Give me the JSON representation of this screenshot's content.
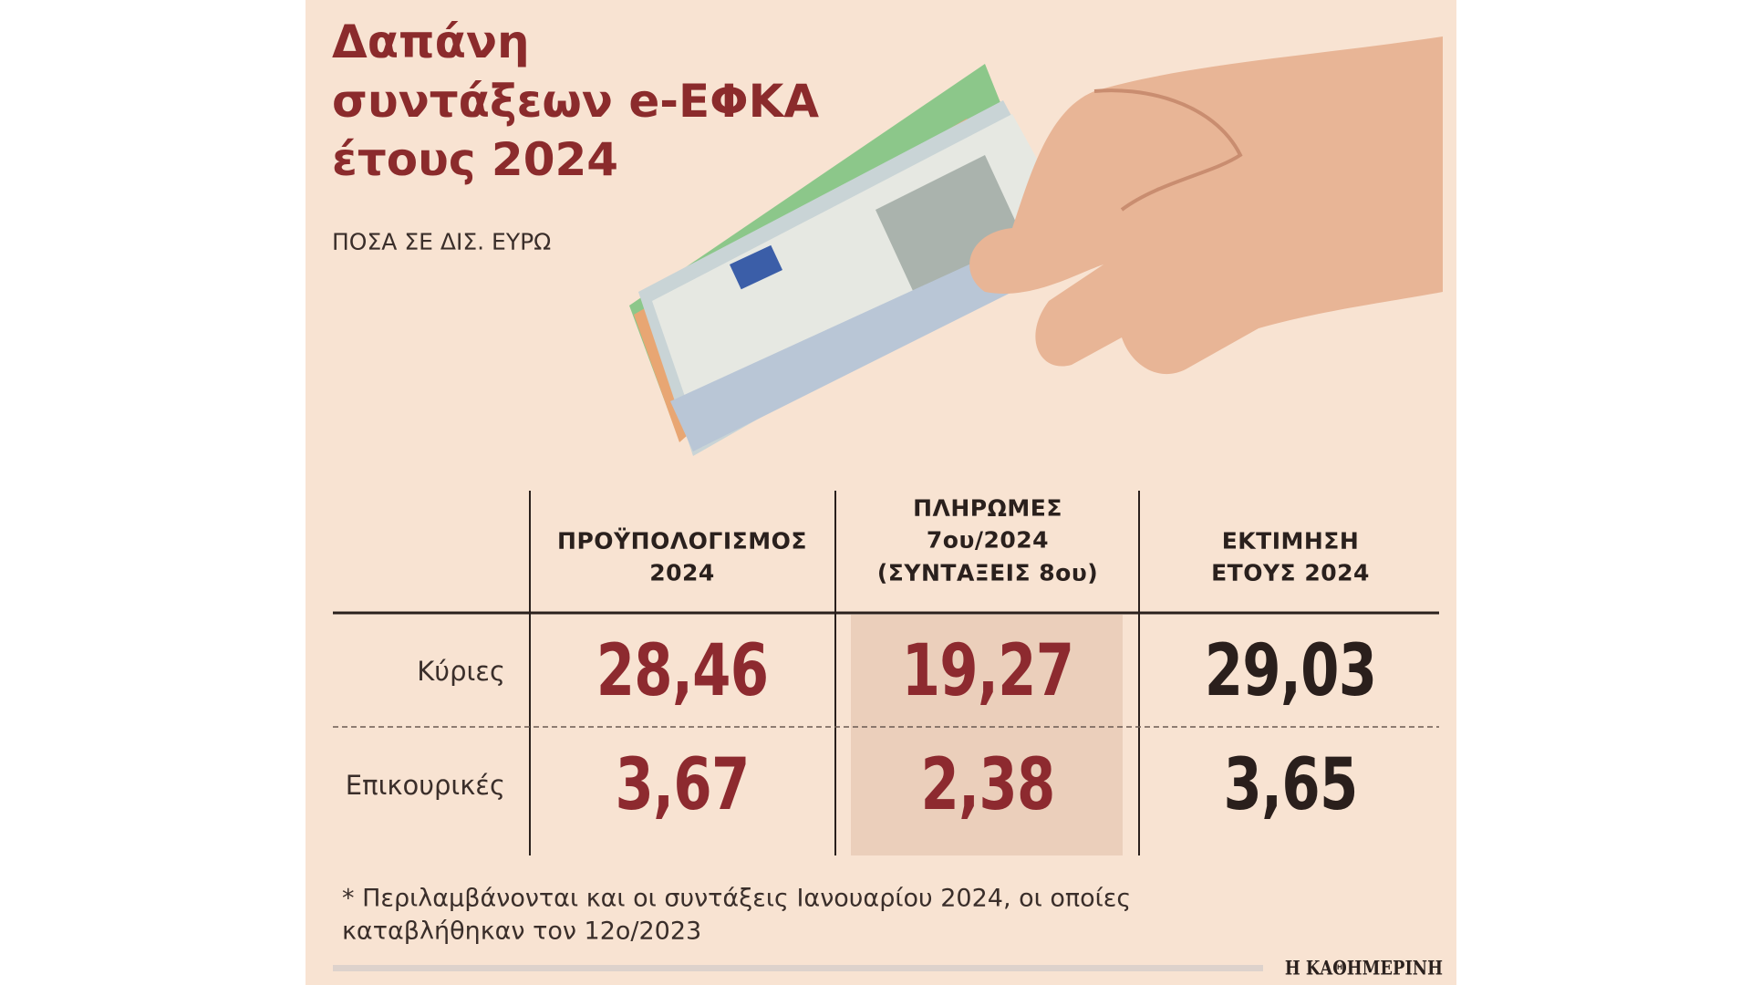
{
  "header": {
    "title": [
      "Δαπάνη",
      "συντάξεων e-ΕΦΚΑ",
      "έτους 2024"
    ],
    "subtitle": "ΠΟΣΑ ΣΕ ΔΙΣ. ΕΥΡΩ"
  },
  "table": {
    "columns": [
      [
        "ΠΡΟΫΠΟΛΟΓΙΣΜΟΣ",
        "2024"
      ],
      [
        "ΠΛΗΡΩΜΕΣ",
        "7ου/2024",
        "(ΣΥΝΤΑΞΕΙΣ 8ου)"
      ],
      [
        "ΕΚΤΙΜΗΣΗ",
        "ΕΤΟΥΣ 2024"
      ]
    ],
    "rows": [
      {
        "label": "Κύριες",
        "values": [
          "28,46",
          "19,27",
          "29,03"
        ]
      },
      {
        "label": "Επικουρικές",
        "values": [
          "3,67",
          "2,38",
          "3,65"
        ]
      }
    ]
  },
  "footnote": [
    "* Περιλαμβάνονται και οι συντάξεις Ιανουαρίου 2024, οι οποίες",
    "καταβλήθηκαν τον 12ο/2023"
  ],
  "source": "Η ΚΑΘΗΜΕΡΙΝΗ"
}
